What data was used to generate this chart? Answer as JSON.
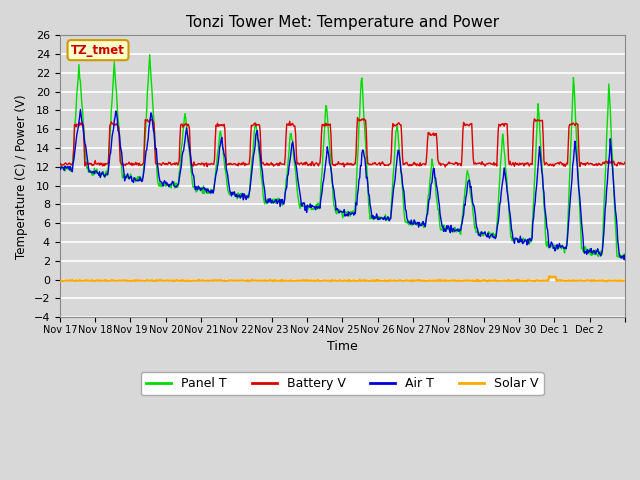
{
  "title": "Tonzi Tower Met: Temperature and Power",
  "xlabel": "Time",
  "ylabel": "Temperature (C) / Power (V)",
  "ylim": [
    -4,
    26
  ],
  "yticks": [
    -4,
    -2,
    0,
    2,
    4,
    6,
    8,
    10,
    12,
    14,
    16,
    18,
    20,
    22,
    24,
    26
  ],
  "bg_color": "#d8d8d8",
  "plot_bg_color": "#d8d8d8",
  "grid_color": "#ffffff",
  "colors": {
    "panel_t": "#00dd00",
    "battery_v": "#dd0000",
    "air_t": "#0000dd",
    "solar_v": "#ffaa00"
  },
  "legend_labels": [
    "Panel T",
    "Battery V",
    "Air T",
    "Solar V"
  ],
  "annotation_text": "TZ_tmet",
  "annotation_color": "#cc0000",
  "annotation_bg": "#ffffcc",
  "annotation_border": "#cc9900",
  "xtick_labels": [
    "Nov 17",
    "Nov 18",
    "Nov 19",
    "Nov 20",
    "Nov 21",
    "Nov 22",
    "Nov 23",
    "Nov 24",
    "Nov 25",
    "Nov 26",
    "Nov 27",
    "Nov 28",
    "Nov 29",
    "Nov 30",
    "Dec 1",
    "Dec 2",
    ""
  ],
  "xlim": [
    0,
    16
  ]
}
